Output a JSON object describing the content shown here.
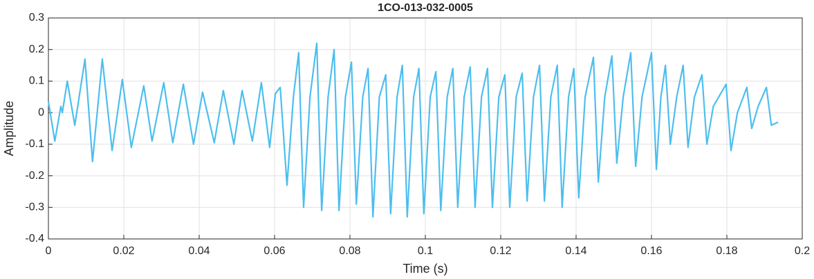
{
  "chart_data": {
    "type": "line",
    "title": "1CO-013-032-0005",
    "x_label": "Time (s)",
    "y_label": "Amplitude",
    "color": "#4dbeee",
    "grid": true,
    "xlim": [
      0,
      0.2
    ],
    "xticks": [
      0,
      0.02,
      0.04,
      0.06,
      0.08,
      0.1,
      0.12,
      0.14,
      0.16,
      0.18,
      0.2
    ],
    "ylim": [
      -0.4,
      0.3
    ],
    "yticks": [
      -0.4,
      -0.3,
      -0.2,
      -0.1,
      0,
      0.1,
      0.2,
      0.3
    ],
    "x": [
      0,
      0.0017,
      0.0033,
      0.0037,
      0.005,
      0.007,
      0.0097,
      0.0117,
      0.0143,
      0.0169,
      0.0196,
      0.022,
      0.0253,
      0.0275,
      0.0306,
      0.033,
      0.0358,
      0.0385,
      0.0409,
      0.044,
      0.0464,
      0.0492,
      0.0514,
      0.0541,
      0.0565,
      0.0587,
      0.0602,
      0.0615,
      0.0633,
      0.065,
      0.0664,
      0.0677,
      0.0694,
      0.0712,
      0.0725,
      0.0742,
      0.0758,
      0.0771,
      0.0788,
      0.0804,
      0.0817,
      0.0834,
      0.0848,
      0.0861,
      0.0878,
      0.0895,
      0.0908,
      0.0925,
      0.0939,
      0.0952,
      0.0969,
      0.0983,
      0.0996,
      0.1013,
      0.1028,
      0.1041,
      0.1058,
      0.1073,
      0.1086,
      0.1103,
      0.1119,
      0.1132,
      0.1149,
      0.1165,
      0.1178,
      0.1195,
      0.1211,
      0.1224,
      0.1241,
      0.1257,
      0.127,
      0.1287,
      0.1303,
      0.1316,
      0.1333,
      0.135,
      0.1363,
      0.138,
      0.1394,
      0.1407,
      0.1424,
      0.1446,
      0.1459,
      0.1476,
      0.1495,
      0.1508,
      0.1525,
      0.1545,
      0.1558,
      0.1575,
      0.16,
      0.1613,
      0.1625,
      0.1637,
      0.165,
      0.1667,
      0.1684,
      0.1697,
      0.1714,
      0.1734,
      0.1747,
      0.1764,
      0.1798,
      0.1811,
      0.1828,
      0.1853,
      0.1866,
      0.1883,
      0.1905,
      0.1918,
      0.1936
    ],
    "values": [
      0.035,
      -0.09,
      0.02,
      0.0,
      0.1,
      -0.04,
      0.17,
      -0.155,
      0.17,
      -0.12,
      0.105,
      -0.11,
      0.085,
      -0.09,
      0.095,
      -0.095,
      0.09,
      -0.1,
      0.065,
      -0.095,
      0.07,
      -0.1,
      0.07,
      -0.09,
      0.095,
      -0.11,
      0.06,
      0.08,
      -0.23,
      0.05,
      0.19,
      -0.3,
      0.05,
      0.22,
      -0.31,
      0.05,
      0.2,
      -0.31,
      0.05,
      0.16,
      -0.29,
      0.05,
      0.14,
      -0.33,
      0.05,
      0.12,
      -0.32,
      0.05,
      0.15,
      -0.33,
      0.05,
      0.14,
      -0.32,
      0.05,
      0.13,
      -0.31,
      0.05,
      0.14,
      -0.3,
      0.05,
      0.145,
      -0.3,
      0.05,
      0.14,
      -0.3,
      0.05,
      0.12,
      -0.3,
      0.05,
      0.125,
      -0.28,
      0.05,
      0.15,
      -0.28,
      0.05,
      0.15,
      -0.3,
      0.05,
      0.14,
      -0.27,
      0.05,
      0.175,
      -0.22,
      0.05,
      0.18,
      -0.16,
      0.05,
      0.19,
      -0.17,
      0.05,
      0.19,
      -0.18,
      0.05,
      0.15,
      -0.1,
      0.05,
      0.15,
      -0.11,
      0.05,
      0.12,
      -0.1,
      0.02,
      0.09,
      -0.12,
      0.0,
      0.08,
      -0.05,
      0.02,
      0.08,
      -0.04,
      -0.03
    ]
  }
}
